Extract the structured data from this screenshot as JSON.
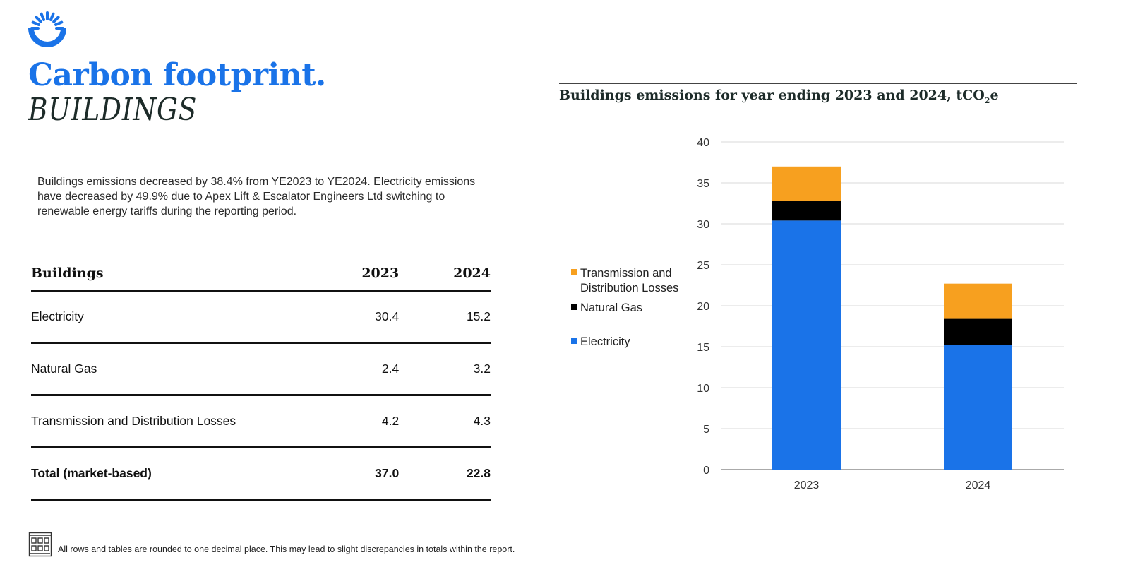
{
  "logo": {
    "icon": "sunrise-ring-logo",
    "color": "#1a73e8"
  },
  "page": {
    "title": "Carbon footprint.",
    "subtitle": "BUILDINGS",
    "intro": "Buildings emissions decreased by 38.4% from YE2023 to YE2024. Electricity emissions have decreased by 49.9% due to Apex Lift & Escalator Engineers Ltd switching to renewable energy tariffs during the reporting period."
  },
  "table": {
    "headers": [
      "Buildings",
      "2023",
      "2024"
    ],
    "rows": [
      {
        "label": "Electricity",
        "v2023": "30.4",
        "v2024": "15.2"
      },
      {
        "label": "Natural Gas",
        "v2023": "2.4",
        "v2024": "3.2"
      },
      {
        "label": "Transmission and Distribution Losses",
        "v2023": "4.2",
        "v2024": "4.3"
      }
    ],
    "total": {
      "label": "Total (market-based)",
      "v2023": "37.0",
      "v2024": "22.8"
    }
  },
  "footnote": {
    "icon": "building-icon",
    "text": "All rows and tables are rounded to one decimal place. This may lead to slight discrepancies in totals within the report."
  },
  "chart_title": {
    "main": "Buildings emissions for year ending 2023 and 2024, tCO",
    "sub": "2",
    "end": "e"
  },
  "chart_data": {
    "type": "bar",
    "stacked": true,
    "title": "Buildings emissions for year ending 2023 and 2024, tCO2e",
    "categories": [
      "2023",
      "2024"
    ],
    "series": [
      {
        "name": "Electricity",
        "values": [
          30.4,
          15.2
        ],
        "color": "#1a73e8"
      },
      {
        "name": "Natural Gas",
        "values": [
          2.4,
          3.2
        ],
        "color": "#000000"
      },
      {
        "name": "Transmission and Distribution Losses",
        "values": [
          4.2,
          4.3
        ],
        "color": "#f7a01f"
      }
    ],
    "ylim": [
      0,
      40
    ],
    "yticks": [
      0,
      5,
      10,
      15,
      20,
      25,
      30,
      35,
      40
    ],
    "grid": true,
    "legend_position": "left",
    "legend_entries": [
      {
        "series": "Transmission and Distribution Losses",
        "lines": [
          "Transmission and",
          "Distribution Losses"
        ]
      },
      {
        "series": "Natural Gas",
        "lines": [
          "Natural Gas"
        ]
      },
      {
        "series": "Electricity",
        "lines": [
          "Electricity"
        ]
      }
    ]
  }
}
